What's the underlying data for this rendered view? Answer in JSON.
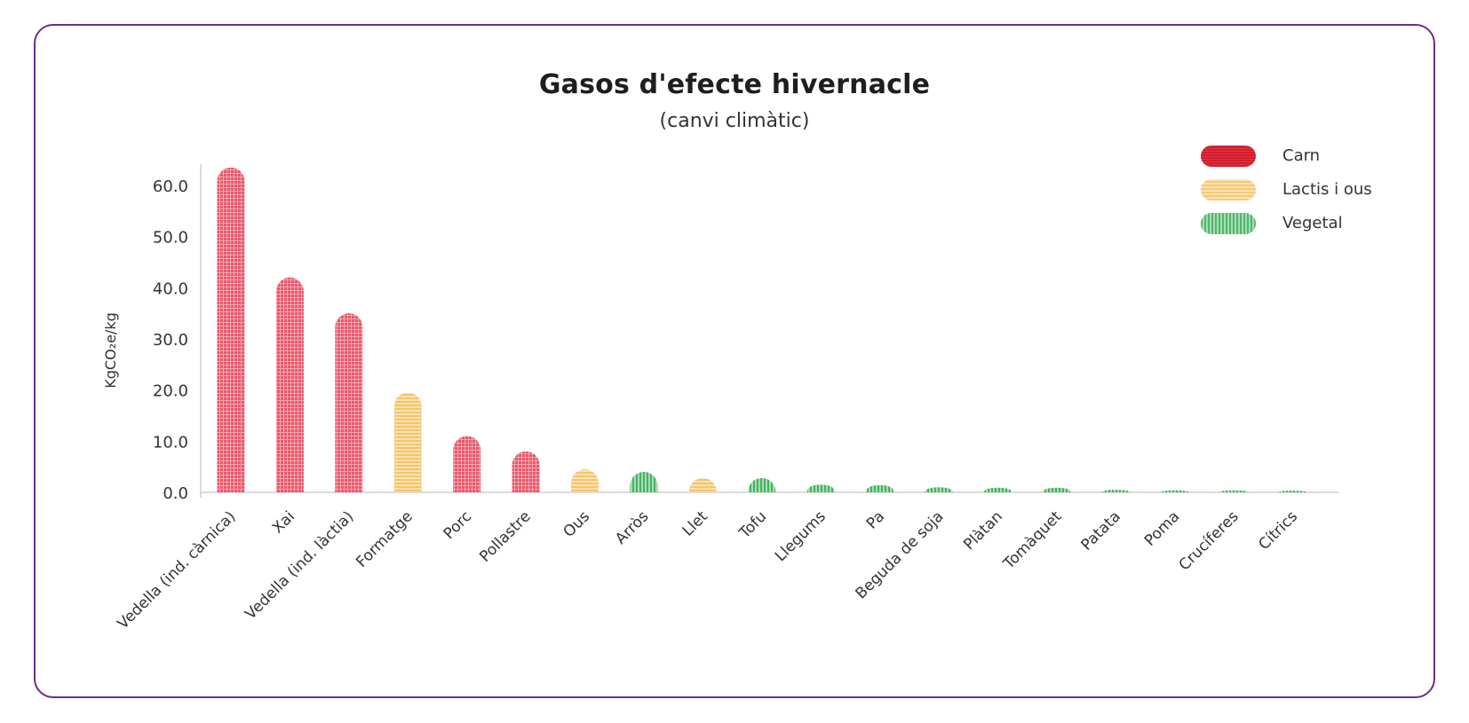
{
  "chart_data": {
    "type": "bar",
    "title": "Gasos d'efecte hivernacle",
    "subtitle": "(canvi climàtic)",
    "ylabel": "KgCO₂e/kg",
    "xlabel": "",
    "ylim": [
      0,
      63
    ],
    "yticks": [
      "0.0",
      "10.0",
      "20.0",
      "30.0",
      "40.0",
      "50.0",
      "60.0"
    ],
    "ytick_values": [
      0,
      10,
      20,
      30,
      40,
      50,
      60
    ],
    "categories": [
      "Vedella (ind. càrnica)",
      "Xai",
      "Vedella (ind. làctia)",
      "Formatge",
      "Porc",
      "Pollastre",
      "Ous",
      "Arròs",
      "Llet",
      "Tofu",
      "Llegums",
      "Pa",
      "Beguda de soja",
      "Plàtan",
      "Tomàquet",
      "Patata",
      "Poma",
      "Crucíferes",
      "Cítrics"
    ],
    "values": [
      63.5,
      42.0,
      35.0,
      19.5,
      11.0,
      8.0,
      4.5,
      4.0,
      2.8,
      2.8,
      1.5,
      1.4,
      1.0,
      0.9,
      0.9,
      0.5,
      0.4,
      0.4,
      0.3
    ],
    "groups": [
      "Carn",
      "Carn",
      "Carn",
      "Lactis i ous",
      "Carn",
      "Carn",
      "Lactis i ous",
      "Vegetal",
      "Lactis i ous",
      "Vegetal",
      "Vegetal",
      "Vegetal",
      "Vegetal",
      "Vegetal",
      "Vegetal",
      "Vegetal",
      "Vegetal",
      "Vegetal",
      "Vegetal"
    ],
    "legend": [
      {
        "name": "Carn",
        "color": "#e8566a",
        "pattern": "grid"
      },
      {
        "name": "Lactis i ous",
        "color": "#f7c873",
        "pattern": "horizontal"
      },
      {
        "name": "Vegetal",
        "color": "#4fb86a",
        "pattern": "vertical"
      }
    ],
    "legend_position": "top-right",
    "grid": false
  }
}
